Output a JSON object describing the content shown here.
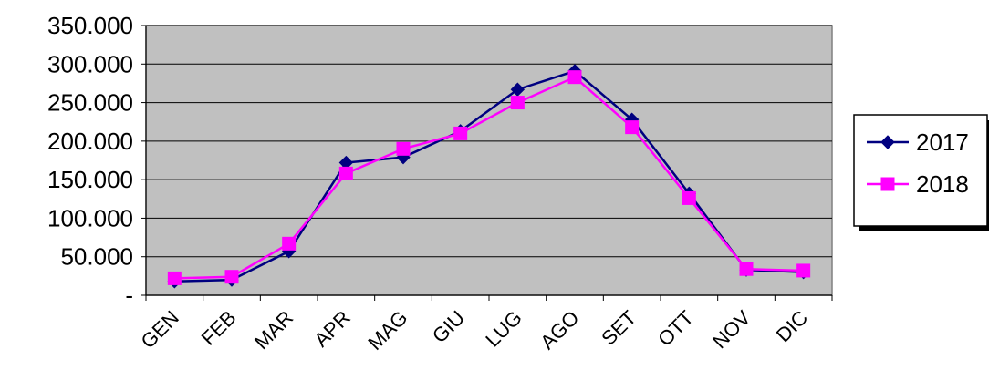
{
  "chart_data": {
    "type": "line",
    "title": "",
    "xlabel": "",
    "ylabel": "",
    "categories": [
      "GEN",
      "FEB",
      "MAR",
      "APR",
      "MAG",
      "GIU",
      "LUG",
      "AGO",
      "SET",
      "OTT",
      "NOV",
      "DIC"
    ],
    "y_ticks": [
      {
        "value": 0,
        "label": "-"
      },
      {
        "value": 50000,
        "label": "50.000"
      },
      {
        "value": 100000,
        "label": "100.000"
      },
      {
        "value": 150000,
        "label": "150.000"
      },
      {
        "value": 200000,
        "label": "200.000"
      },
      {
        "value": 250000,
        "label": "250.000"
      },
      {
        "value": 300000,
        "label": "300.000"
      },
      {
        "value": 350000,
        "label": "350.000"
      }
    ],
    "ylim": [
      0,
      350000
    ],
    "grid": true,
    "legend_position": "right",
    "background_color": "#c0c0c0",
    "series": [
      {
        "name": "2017",
        "color": "#000080",
        "marker": "diamond",
        "values": [
          18000,
          20000,
          57000,
          172000,
          179000,
          213000,
          267000,
          291000,
          228000,
          132000,
          33000,
          30000
        ]
      },
      {
        "name": "2018",
        "color": "#ff00ff",
        "marker": "square",
        "values": [
          22000,
          24000,
          67000,
          158000,
          190000,
          210000,
          250000,
          283000,
          218000,
          126000,
          34000,
          32000
        ]
      }
    ]
  }
}
